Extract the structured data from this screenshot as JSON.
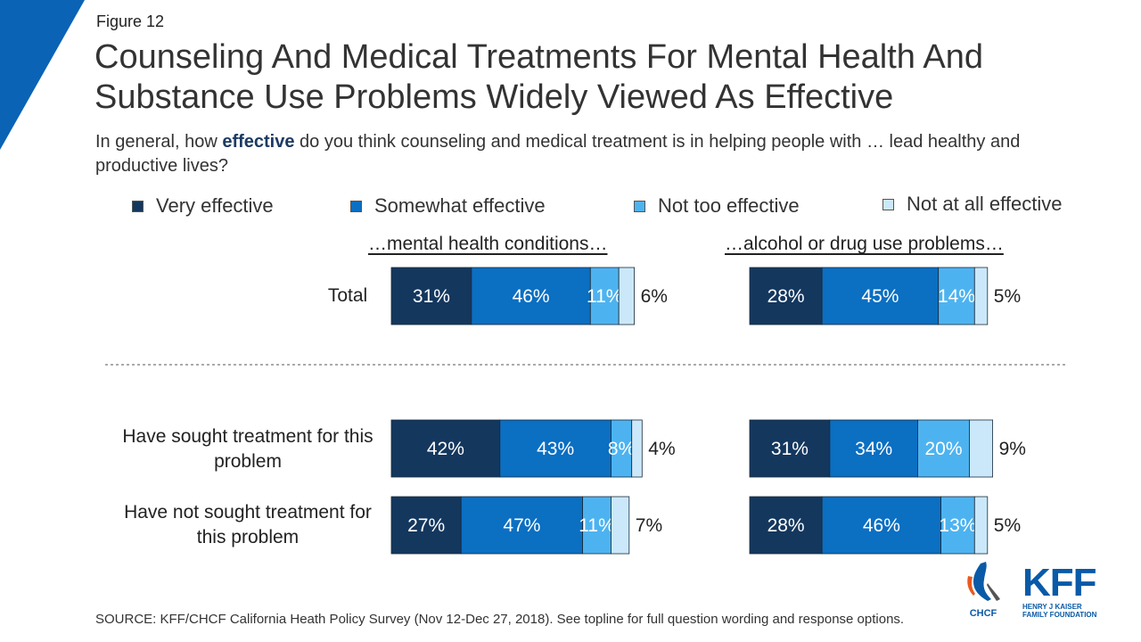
{
  "figure_label": "Figure 12",
  "title": "Counseling And Medical Treatments For Mental Health And Substance Use Problems Widely Viewed As Effective",
  "subtitle": {
    "prefix": "In general, how ",
    "emphasis": "effective",
    "suffix": " do you think counseling and medical treatment is in helping people with … lead healthy and productive lives?"
  },
  "source": "SOURCE: KFF/CHCF California Heath Policy Survey (Nov 12-Dec 27, 2018). See topline for full question wording and response options.",
  "logos": {
    "chcf": "CHCF",
    "kff": "KFF",
    "kff_sub_1": "HENRY J KAISER",
    "kff_sub_2": "FAMILY FOUNDATION"
  },
  "colors": {
    "very": "#14375e",
    "somewhat": "#0b6fc2",
    "not_too": "#4db3f0",
    "not_at_all": "#cbe8fa",
    "accent": "#0a5aa8"
  },
  "chart_data": {
    "type": "bar",
    "orientation": "horizontal-stacked",
    "title": "Counseling And Medical Treatments For Mental Health And Substance Use Problems Widely Viewed As Effective",
    "legend": [
      "Very effective",
      "Somewhat effective",
      "Not too effective",
      "Not at all effective"
    ],
    "legend_placement": "top",
    "categories": [
      "Total",
      "Have sought treatment for this problem",
      "Have not sought treatment for this problem"
    ],
    "panels": [
      {
        "title": "…mental health conditions…",
        "series": [
          {
            "name": "Very effective",
            "values": [
              31,
              42,
              27
            ]
          },
          {
            "name": "Somewhat effective",
            "values": [
              46,
              43,
              47
            ]
          },
          {
            "name": "Not too effective",
            "values": [
              11,
              8,
              11
            ]
          },
          {
            "name": "Not at all effective",
            "values": [
              6,
              4,
              7
            ]
          }
        ]
      },
      {
        "title": "…alcohol or drug use problems…",
        "series": [
          {
            "name": "Very effective",
            "values": [
              28,
              31,
              28
            ]
          },
          {
            "name": "Somewhat effective",
            "values": [
              45,
              34,
              46
            ]
          },
          {
            "name": "Not too effective",
            "values": [
              14,
              20,
              13
            ]
          },
          {
            "name": "Not at all effective",
            "values": [
              5,
              9,
              5
            ]
          }
        ]
      }
    ],
    "value_suffix": "%",
    "xlim": [
      0,
      100
    ],
    "grid": false
  }
}
